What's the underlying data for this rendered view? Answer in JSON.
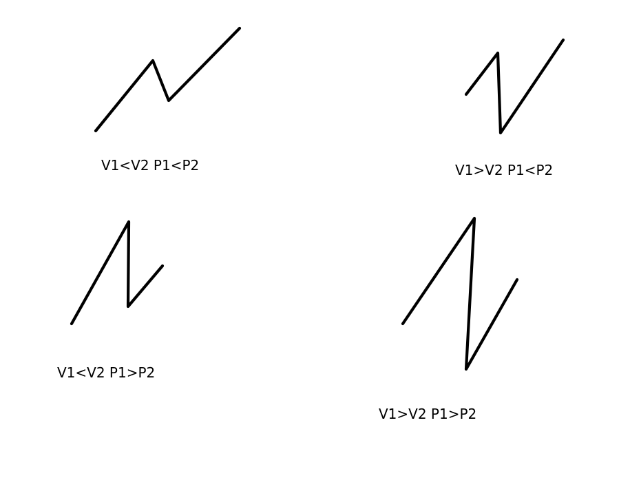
{
  "diagram": {
    "cases": [
      {
        "label": "V1<V2 P1<P2"
      },
      {
        "label": "V1>V2 P1<P2"
      },
      {
        "label": "V1<V2 P1>P2"
      },
      {
        "label": "V1>V2 P1>P2"
      }
    ],
    "stroke_color": "#000000",
    "background_color": "#ffffff"
  }
}
